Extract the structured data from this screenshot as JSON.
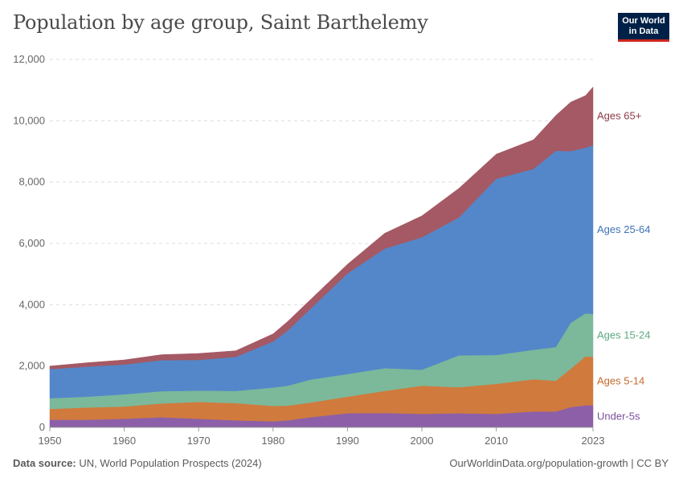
{
  "header": {
    "title": "Population by age group, Saint Barthelemy"
  },
  "logo": {
    "line1": "Our World",
    "line2": "in Data"
  },
  "footer": {
    "source_label": "Data source:",
    "source_text": "UN, World Population Prospects (2024)",
    "url": "OurWorldinData.org/population-growth | CC BY"
  },
  "chart_data": {
    "type": "area",
    "stacked": true,
    "title": "Population by age group, Saint Barthelemy",
    "xlabel": "",
    "ylabel": "",
    "xlim": [
      1950,
      2023
    ],
    "ylim": [
      0,
      12000
    ],
    "y_ticks": [
      0,
      2000,
      4000,
      6000,
      8000,
      10000,
      12000
    ],
    "y_tick_labels": [
      "0",
      "2,000",
      "4,000",
      "6,000",
      "8,000",
      "10,000",
      "12,000"
    ],
    "x_ticks": [
      1950,
      1960,
      1970,
      1980,
      1990,
      2000,
      2010,
      2023
    ],
    "x_tick_labels": [
      "1950",
      "1960",
      "1970",
      "1980",
      "1990",
      "2000",
      "2010",
      "2023"
    ],
    "grid": true,
    "x": [
      1950,
      1955,
      1960,
      1965,
      1970,
      1975,
      1980,
      1982,
      1985,
      1990,
      1995,
      2000,
      2005,
      2010,
      2015,
      2018,
      2020,
      2022,
      2023
    ],
    "series": [
      {
        "name": "Under-5s",
        "color": "#8c5fa8",
        "values": [
          250,
          250,
          280,
          330,
          280,
          230,
          200,
          230,
          330,
          460,
          470,
          440,
          460,
          440,
          520,
          520,
          660,
          720,
          720
        ]
      },
      {
        "name": "Ages 5-14",
        "color": "#d07a3e",
        "values": [
          350,
          400,
          400,
          450,
          550,
          560,
          500,
          480,
          480,
          540,
          720,
          920,
          850,
          980,
          1050,
          1000,
          1250,
          1600,
          1580
        ]
      },
      {
        "name": "Ages 15-24",
        "color": "#7bb99a",
        "values": [
          350,
          350,
          400,
          400,
          370,
          400,
          600,
          650,
          750,
          740,
          740,
          520,
          1040,
          940,
          960,
          1100,
          1500,
          1400,
          1400
        ]
      },
      {
        "name": "Ages 25-64",
        "color": "#5487c9",
        "values": [
          950,
          980,
          970,
          1010,
          1000,
          1110,
          1500,
          1800,
          2300,
          3280,
          3900,
          4320,
          4500,
          5750,
          5900,
          6400,
          5600,
          5400,
          5500
        ]
      },
      {
        "name": "Ages 65+",
        "color": "#a45964",
        "values": [
          100,
          130,
          150,
          180,
          210,
          200,
          250,
          300,
          300,
          300,
          500,
          700,
          950,
          800,
          950,
          1150,
          1600,
          1700,
          1900
        ]
      }
    ]
  }
}
